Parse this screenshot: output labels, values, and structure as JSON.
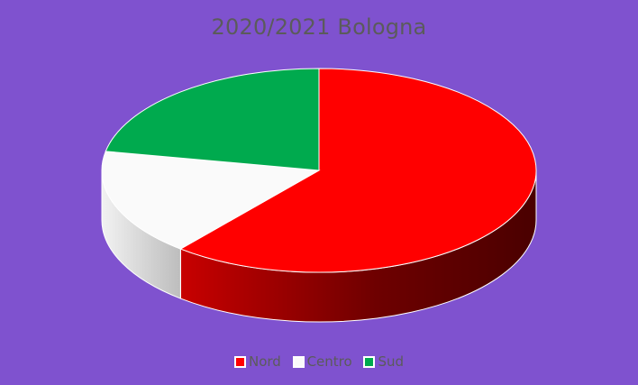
{
  "chart_data": {
    "type": "pie",
    "title": "2020/2021 Bologna",
    "categories": [
      "Nord",
      "Centro",
      "Sud"
    ],
    "values": [
      61,
      17,
      22
    ],
    "colors": [
      "#ff0000",
      "#fafafa",
      "#00aa4e"
    ],
    "legend_position": "bottom",
    "style": "3d"
  }
}
